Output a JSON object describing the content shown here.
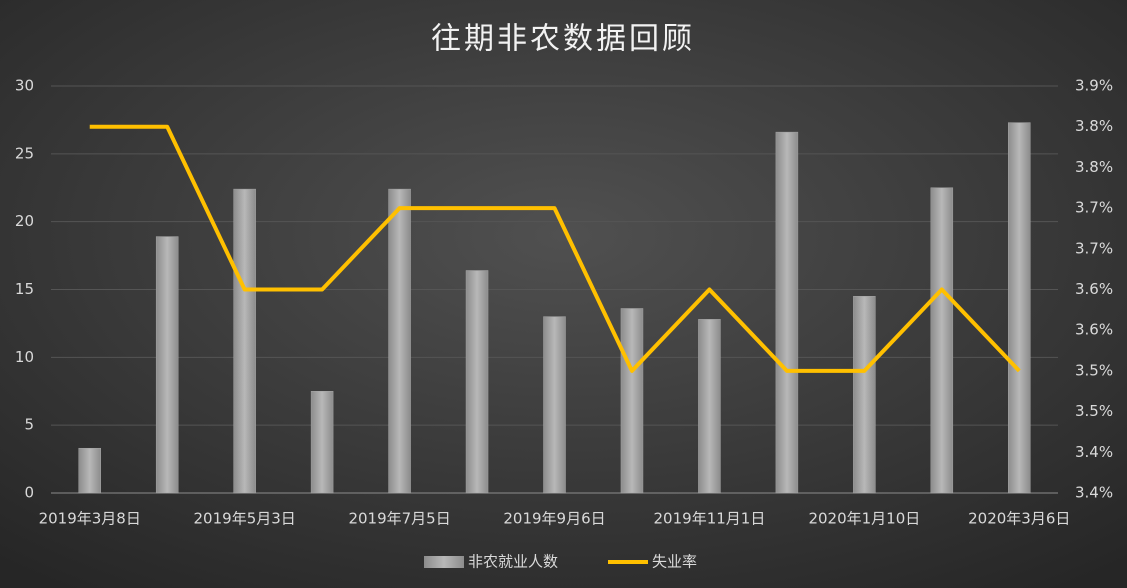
{
  "chart_data": {
    "type": "bar-line",
    "title": "往期非农数据回顾",
    "categories": [
      "2019年3月8日",
      null,
      "2019年5月3日",
      null,
      "2019年7月5日",
      null,
      "2019年9月6日",
      null,
      "2019年11月1日",
      null,
      "2020年1月10日",
      null,
      "2020年3月6日"
    ],
    "series": [
      {
        "name": "非农就业人数",
        "type": "bar",
        "color": "#a6a6a6",
        "values": [
          3.3,
          18.9,
          22.4,
          7.5,
          22.4,
          16.4,
          13.0,
          13.6,
          12.8,
          26.6,
          14.5,
          22.5,
          27.3
        ]
      },
      {
        "name": "失业率",
        "type": "line",
        "axis": "y2",
        "color": "#ffc000",
        "values": [
          3.85,
          3.85,
          3.65,
          3.65,
          3.75,
          3.75,
          3.75,
          3.55,
          3.65,
          3.55,
          3.55,
          3.65,
          3.55
        ]
      }
    ],
    "ylim": [
      0,
      30
    ],
    "yticks": [
      0,
      5,
      10,
      15,
      20,
      25,
      30
    ],
    "y2lim": [
      3.4,
      3.9
    ],
    "y2ticks": [
      {
        "value": 3.4,
        "label": "3.4%"
      },
      {
        "value": 3.45,
        "label": "3.4%"
      },
      {
        "value": 3.5,
        "label": "3.5%"
      },
      {
        "value": 3.55,
        "label": "3.5%"
      },
      {
        "value": 3.6,
        "label": "3.6%"
      },
      {
        "value": 3.65,
        "label": "3.6%"
      },
      {
        "value": 3.7,
        "label": "3.7%"
      },
      {
        "value": 3.75,
        "label": "3.7%"
      },
      {
        "value": 3.8,
        "label": "3.8%"
      },
      {
        "value": 3.85,
        "label": "3.8%"
      },
      {
        "value": 3.9,
        "label": "3.9%"
      }
    ],
    "grid": true,
    "legend": "bottom"
  }
}
